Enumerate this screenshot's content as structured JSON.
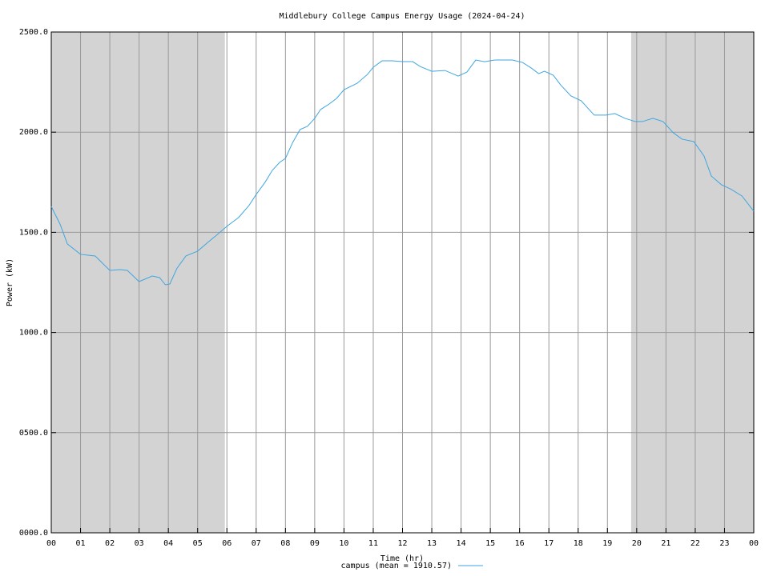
{
  "chart_data": {
    "type": "line",
    "title": "Middlebury College Campus Energy Usage (2024-04-24)",
    "x_label": "Time (hr)",
    "y_label": "Power (kW)",
    "xlim": [
      0,
      24
    ],
    "ylim": [
      0,
      2500
    ],
    "xticks": [
      {
        "value": 0,
        "label": "00"
      },
      {
        "value": 1,
        "label": "01"
      },
      {
        "value": 2,
        "label": "02"
      },
      {
        "value": 3,
        "label": "03"
      },
      {
        "value": 4,
        "label": "04"
      },
      {
        "value": 5,
        "label": "05"
      },
      {
        "value": 6,
        "label": "06"
      },
      {
        "value": 7,
        "label": "07"
      },
      {
        "value": 8,
        "label": "08"
      },
      {
        "value": 9,
        "label": "09"
      },
      {
        "value": 10,
        "label": "10"
      },
      {
        "value": 11,
        "label": "11"
      },
      {
        "value": 12,
        "label": "12"
      },
      {
        "value": 13,
        "label": "13"
      },
      {
        "value": 14,
        "label": "14"
      },
      {
        "value": 15,
        "label": "15"
      },
      {
        "value": 16,
        "label": "16"
      },
      {
        "value": 17,
        "label": "17"
      },
      {
        "value": 18,
        "label": "18"
      },
      {
        "value": 19,
        "label": "19"
      },
      {
        "value": 20,
        "label": "20"
      },
      {
        "value": 21,
        "label": "21"
      },
      {
        "value": 22,
        "label": "22"
      },
      {
        "value": 23,
        "label": "23"
      },
      {
        "value": 24,
        "label": "00"
      }
    ],
    "yticks": [
      {
        "value": 0,
        "label": "0000.0"
      },
      {
        "value": 500,
        "label": "0500.0"
      },
      {
        "value": 1000,
        "label": "1000.0"
      },
      {
        "value": 1500,
        "label": "1500.0"
      },
      {
        "value": 2000,
        "label": "2000.0"
      },
      {
        "value": 2500,
        "label": "2500.0"
      }
    ],
    "grid": true,
    "shaded_x": [
      [
        0,
        5.93
      ],
      [
        19.81,
        24
      ]
    ],
    "shade_color": "#d3d3d3",
    "x": [
      0,
      0.3,
      0.55,
      1.0,
      1.5,
      2.0,
      2.35,
      2.6,
      3.0,
      3.45,
      3.7,
      3.9,
      4.05,
      4.3,
      4.6,
      5.0,
      5.35,
      5.65,
      6.0,
      6.4,
      6.75,
      7.0,
      7.3,
      7.55,
      7.8,
      8.0,
      8.25,
      8.5,
      8.75,
      9.0,
      9.2,
      9.5,
      9.75,
      10.0,
      10.45,
      10.8,
      11.0,
      11.3,
      11.65,
      12.0,
      12.35,
      12.6,
      13.0,
      13.45,
      13.9,
      14.2,
      14.5,
      14.8,
      15.15,
      15.75,
      16.1,
      16.4,
      16.65,
      16.85,
      17.15,
      17.4,
      17.75,
      18.1,
      18.55,
      18.95,
      19.25,
      19.6,
      19.95,
      20.2,
      20.55,
      20.9,
      21.25,
      21.55,
      21.95,
      22.3,
      22.55,
      22.9,
      23.2,
      23.6,
      24.0
    ],
    "series": [
      {
        "name": "campus (mean = 1910.57)",
        "color": "#3fa6e0",
        "values": [
          1629,
          1541,
          1442,
          1390,
          1382,
          1310,
          1314,
          1310,
          1254,
          1282,
          1274,
          1238,
          1242,
          1322,
          1382,
          1406,
          1450,
          1486,
          1530,
          1574,
          1633,
          1689,
          1749,
          1809,
          1849,
          1869,
          1949,
          2013,
          2029,
          2069,
          2113,
          2141,
          2169,
          2212,
          2244,
          2288,
          2324,
          2356,
          2356,
          2352,
          2352,
          2328,
          2304,
          2308,
          2280,
          2300,
          2360,
          2352,
          2360,
          2360,
          2348,
          2320,
          2292,
          2304,
          2284,
          2236,
          2181,
          2157,
          2085,
          2085,
          2093,
          2069,
          2053,
          2053,
          2069,
          2053,
          1997,
          1965,
          1953,
          1881,
          1781,
          1737,
          1717,
          1681,
          1605
        ]
      }
    ]
  }
}
